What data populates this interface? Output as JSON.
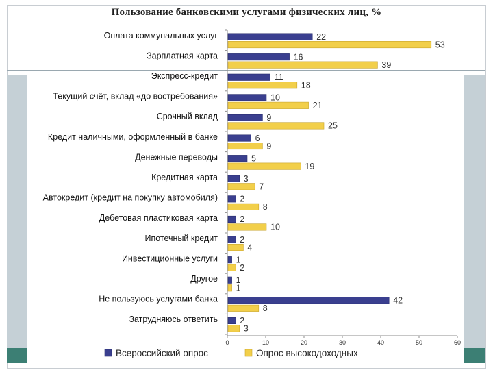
{
  "chart_data": {
    "type": "bar",
    "orientation": "horizontal",
    "title": "Пользование банковскими услугами физических лиц, %",
    "categories": [
      "Оплата коммунальных услуг",
      "Зарплатная карта",
      "Экспресс-кредит",
      "Текущий счёт, вклад «до востребования»",
      "Срочный вклад",
      "Кредит наличными, оформленный в банке",
      "Денежные переводы",
      "Кредитная карта",
      "Автокредит (кредит на покупку автомобиля)",
      "Дебетовая пластиковая карта",
      "Ипотечный кредит",
      "Инвестиционные услуги",
      "Другое",
      "Не пользуюсь услугами банка",
      "Затрудняюсь ответить"
    ],
    "series": [
      {
        "name": "Всероссийский опрос",
        "color": "#3a3f8f",
        "values": [
          22,
          16,
          11,
          10,
          9,
          6,
          5,
          3,
          2,
          2,
          2,
          1,
          1,
          42,
          2
        ]
      },
      {
        "name": "Опрос высокодоходных",
        "color": "#f2cf4a",
        "values": [
          53,
          39,
          18,
          21,
          25,
          9,
          19,
          7,
          8,
          10,
          4,
          2,
          1,
          8,
          3
        ]
      }
    ],
    "xlim": [
      0,
      60
    ],
    "xticks": [
      "0",
      "10",
      "20",
      "30",
      "40",
      "50",
      "60"
    ],
    "xlabel": "",
    "ylabel": "",
    "legend_position": "bottom"
  }
}
